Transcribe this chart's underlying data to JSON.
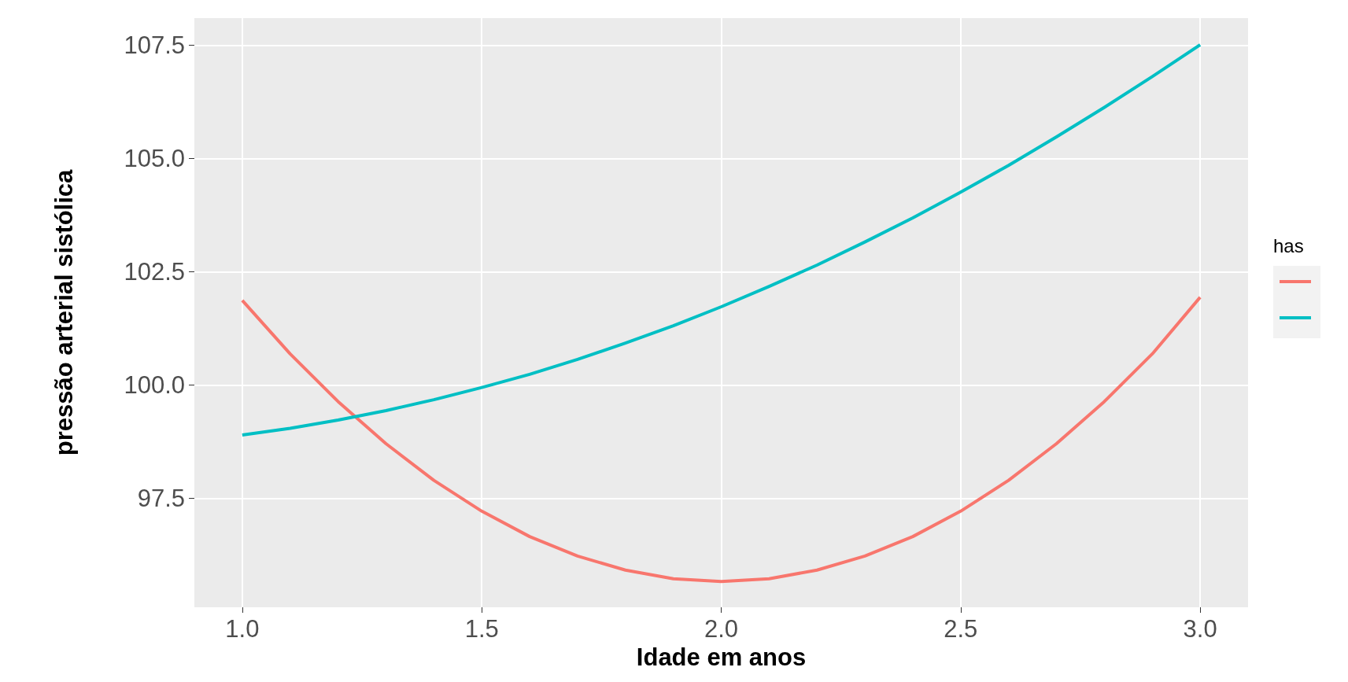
{
  "chart_data": {
    "type": "line",
    "xlabel": "Idade em anos",
    "ylabel": "pressão arterial sistólica",
    "legend_title": "has",
    "x": [
      1.0,
      1.1,
      1.2,
      1.3,
      1.4,
      1.5,
      1.6,
      1.7,
      1.8,
      1.9,
      2.0,
      2.1,
      2.2,
      2.3,
      2.4,
      2.5,
      2.6,
      2.7,
      2.8,
      2.9,
      3.0
    ],
    "series": [
      {
        "color": "#f8766d",
        "values": [
          101.87,
          100.69,
          99.64,
          98.71,
          97.9,
          97.22,
          96.66,
          96.23,
          95.92,
          95.73,
          95.67,
          95.73,
          95.92,
          96.23,
          96.66,
          97.22,
          97.9,
          98.71,
          99.64,
          100.69,
          101.94
        ]
      },
      {
        "color": "#00bfc4",
        "values": [
          98.9,
          99.05,
          99.23,
          99.44,
          99.68,
          99.95,
          100.24,
          100.57,
          100.93,
          101.31,
          101.73,
          102.18,
          102.65,
          103.16,
          103.69,
          104.26,
          104.85,
          105.48,
          106.13,
          106.81,
          107.51
        ]
      }
    ],
    "xlim": [
      0.9,
      3.1
    ],
    "xticks": [
      {
        "value": 1,
        "label": "1.0"
      },
      {
        "value": 1.5,
        "label": "1.5"
      },
      {
        "value": 2,
        "label": "2.0"
      },
      {
        "value": 2.5,
        "label": "2.5"
      },
      {
        "value": 3,
        "label": "3.0"
      }
    ],
    "ylim": [
      95.1,
      108.1
    ],
    "yticks": [
      {
        "value": 97.5,
        "label": "97.5"
      },
      {
        "value": 100,
        "label": "100.0"
      },
      {
        "value": 102.5,
        "label": "102.5"
      },
      {
        "value": 105,
        "label": "105.0"
      },
      {
        "value": 107.5,
        "label": "107.5"
      }
    ],
    "grid": true,
    "marker": "none",
    "line_style": "solid"
  }
}
